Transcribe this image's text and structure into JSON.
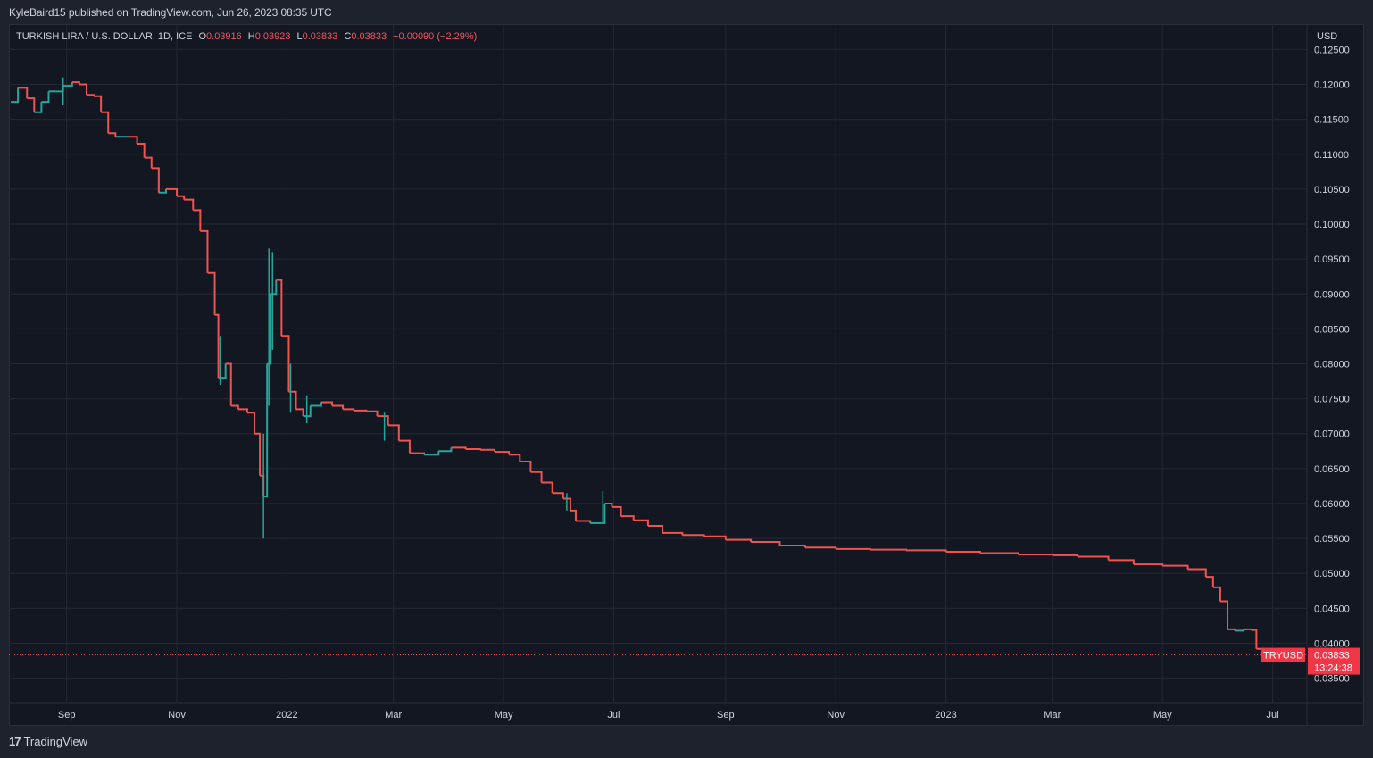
{
  "publisher_line": "KyleBaird15 published on TradingView.com, Jun 26, 2023 08:35 UTC",
  "legend": {
    "title": "TURKISH LIRA / U.S. DOLLAR, 1D, ICE",
    "o_label": "O",
    "o_value": "0.03916",
    "h_label": "H",
    "h_value": "0.03923",
    "l_label": "L",
    "l_value": "0.03833",
    "c_label": "C",
    "c_value": "0.03833",
    "change": "−0.00090 (−2.29%)"
  },
  "footer": {
    "logo_mark": "17",
    "brand": "TradingView"
  },
  "colors": {
    "up": "#26a69a",
    "down": "#ef5350",
    "grid": "#242833",
    "axis_text": "#d1d4dc",
    "price_tag": "#f23645"
  },
  "chart_data": {
    "type": "candlestick",
    "symbol": "TRYUSD",
    "interval": "1D",
    "currency_label": "USD",
    "last_price": "0.03833",
    "countdown": "13:24:38",
    "ylim": [
      0.0315,
      0.1285
    ],
    "y_ticks": [
      "0.12500",
      "0.12000",
      "0.11500",
      "0.11000",
      "0.10500",
      "0.10000",
      "0.09500",
      "0.09000",
      "0.08500",
      "0.08000",
      "0.07500",
      "0.07000",
      "0.06500",
      "0.06000",
      "0.05500",
      "0.05000",
      "0.04500",
      "0.04000",
      "0.03500"
    ],
    "x_ticks": [
      "Sep",
      "Nov",
      "2022",
      "Mar",
      "May",
      "Jul",
      "Sep",
      "Nov",
      "2023",
      "Mar",
      "May",
      "Jul"
    ],
    "x_tick_dates": [
      "2021-09-01",
      "2021-11-01",
      "2022-01-01",
      "2022-03-01",
      "2022-05-01",
      "2022-07-01",
      "2022-09-01",
      "2022-11-01",
      "2023-01-01",
      "2023-03-01",
      "2023-05-01",
      "2023-07-01"
    ],
    "x_range": [
      "2021-07-31",
      "2023-07-20"
    ],
    "series_points": [
      [
        "2021-08-01",
        0.1175
      ],
      [
        "2021-08-05",
        0.1195
      ],
      [
        "2021-08-10",
        0.118
      ],
      [
        "2021-08-14",
        0.116
      ],
      [
        "2021-08-18",
        0.1175
      ],
      [
        "2021-08-22",
        0.119
      ],
      [
        "2021-08-26",
        0.119
      ],
      [
        "2021-08-30",
        0.1198
      ],
      [
        "2021-09-04",
        0.1203
      ],
      [
        "2021-09-08",
        0.12
      ],
      [
        "2021-09-12",
        0.1185
      ],
      [
        "2021-09-16",
        0.1183
      ],
      [
        "2021-09-20",
        0.116
      ],
      [
        "2021-09-24",
        0.113
      ],
      [
        "2021-09-28",
        0.1125
      ],
      [
        "2021-10-05",
        0.1125
      ],
      [
        "2021-10-10",
        0.1115
      ],
      [
        "2021-10-14",
        0.1095
      ],
      [
        "2021-10-18",
        0.108
      ],
      [
        "2021-10-22",
        0.1045
      ],
      [
        "2021-10-26",
        0.105
      ],
      [
        "2021-11-01",
        0.104
      ],
      [
        "2021-11-05",
        0.1035
      ],
      [
        "2021-11-10",
        0.102
      ],
      [
        "2021-11-14",
        0.099
      ],
      [
        "2021-11-18",
        0.093
      ],
      [
        "2021-11-22",
        0.087
      ],
      [
        "2021-11-24",
        0.078
      ],
      [
        "2021-11-28",
        0.08
      ],
      [
        "2021-12-01",
        0.074
      ],
      [
        "2021-12-05",
        0.0735
      ],
      [
        "2021-12-10",
        0.073
      ],
      [
        "2021-12-14",
        0.07
      ],
      [
        "2021-12-17",
        0.064
      ],
      [
        "2021-12-19",
        0.061
      ],
      [
        "2021-12-21",
        0.08
      ],
      [
        "2021-12-23",
        0.09
      ],
      [
        "2021-12-26",
        0.092
      ],
      [
        "2021-12-29",
        0.084
      ],
      [
        "2022-01-02",
        0.076
      ],
      [
        "2022-01-06",
        0.0735
      ],
      [
        "2022-01-10",
        0.0725
      ],
      [
        "2022-01-14",
        0.074
      ],
      [
        "2022-01-20",
        0.0745
      ],
      [
        "2022-01-26",
        0.074
      ],
      [
        "2022-02-01",
        0.0735
      ],
      [
        "2022-02-07",
        0.0733
      ],
      [
        "2022-02-14",
        0.0732
      ],
      [
        "2022-02-20",
        0.0725
      ],
      [
        "2022-02-26",
        0.0712
      ],
      [
        "2022-03-04",
        0.069
      ],
      [
        "2022-03-10",
        0.0672
      ],
      [
        "2022-03-18",
        0.067
      ],
      [
        "2022-03-26",
        0.0675
      ],
      [
        "2022-04-02",
        0.068
      ],
      [
        "2022-04-10",
        0.0678
      ],
      [
        "2022-04-18",
        0.0677
      ],
      [
        "2022-04-26",
        0.0674
      ],
      [
        "2022-05-04",
        0.067
      ],
      [
        "2022-05-10",
        0.066
      ],
      [
        "2022-05-16",
        0.0645
      ],
      [
        "2022-05-22",
        0.063
      ],
      [
        "2022-05-28",
        0.0615
      ],
      [
        "2022-06-03",
        0.0607
      ],
      [
        "2022-06-07",
        0.059
      ],
      [
        "2022-06-10",
        0.0575
      ],
      [
        "2022-06-18",
        0.0572
      ],
      [
        "2022-06-24",
        0.0572
      ],
      [
        "2022-06-26",
        0.06
      ],
      [
        "2022-06-30",
        0.0595
      ],
      [
        "2022-07-05",
        0.0582
      ],
      [
        "2022-07-12",
        0.0576
      ],
      [
        "2022-07-20",
        0.0568
      ],
      [
        "2022-07-28",
        0.0558
      ],
      [
        "2022-08-08",
        0.0555
      ],
      [
        "2022-08-20",
        0.0553
      ],
      [
        "2022-09-01",
        0.0548
      ],
      [
        "2022-09-15",
        0.0545
      ],
      [
        "2022-10-01",
        0.054
      ],
      [
        "2022-10-15",
        0.0537
      ],
      [
        "2022-11-01",
        0.0535
      ],
      [
        "2022-11-20",
        0.0534
      ],
      [
        "2022-12-10",
        0.0533
      ],
      [
        "2023-01-01",
        0.0531
      ],
      [
        "2023-01-20",
        0.0529
      ],
      [
        "2023-02-10",
        0.0527
      ],
      [
        "2023-03-01",
        0.0526
      ],
      [
        "2023-03-15",
        0.0524
      ],
      [
        "2023-04-01",
        0.0519
      ],
      [
        "2023-04-15",
        0.0513
      ],
      [
        "2023-05-01",
        0.0511
      ],
      [
        "2023-05-15",
        0.0506
      ],
      [
        "2023-05-25",
        0.0495
      ],
      [
        "2023-05-29",
        0.048
      ],
      [
        "2023-06-02",
        0.046
      ],
      [
        "2023-06-06",
        0.042
      ],
      [
        "2023-06-10",
        0.0418
      ],
      [
        "2023-06-15",
        0.042
      ],
      [
        "2023-06-19",
        0.0419
      ],
      [
        "2023-06-22",
        0.0392
      ],
      [
        "2023-06-26",
        0.03833
      ]
    ],
    "wicks": [
      {
        "date": "2021-12-19",
        "low": 0.055,
        "high": 0.07
      },
      {
        "date": "2021-12-22",
        "low": 0.074,
        "high": 0.0965
      },
      {
        "date": "2021-12-24",
        "low": 0.082,
        "high": 0.096
      },
      {
        "date": "2021-08-30",
        "low": 0.117,
        "high": 0.121
      },
      {
        "date": "2021-11-25",
        "low": 0.077,
        "high": 0.084
      },
      {
        "date": "2022-01-03",
        "low": 0.073,
        "high": 0.08
      },
      {
        "date": "2022-01-12",
        "low": 0.0715,
        "high": 0.0755
      },
      {
        "date": "2022-02-24",
        "low": 0.069,
        "high": 0.073
      },
      {
        "date": "2022-06-25",
        "low": 0.0572,
        "high": 0.0618
      },
      {
        "date": "2022-06-05",
        "low": 0.059,
        "high": 0.0615
      }
    ]
  }
}
